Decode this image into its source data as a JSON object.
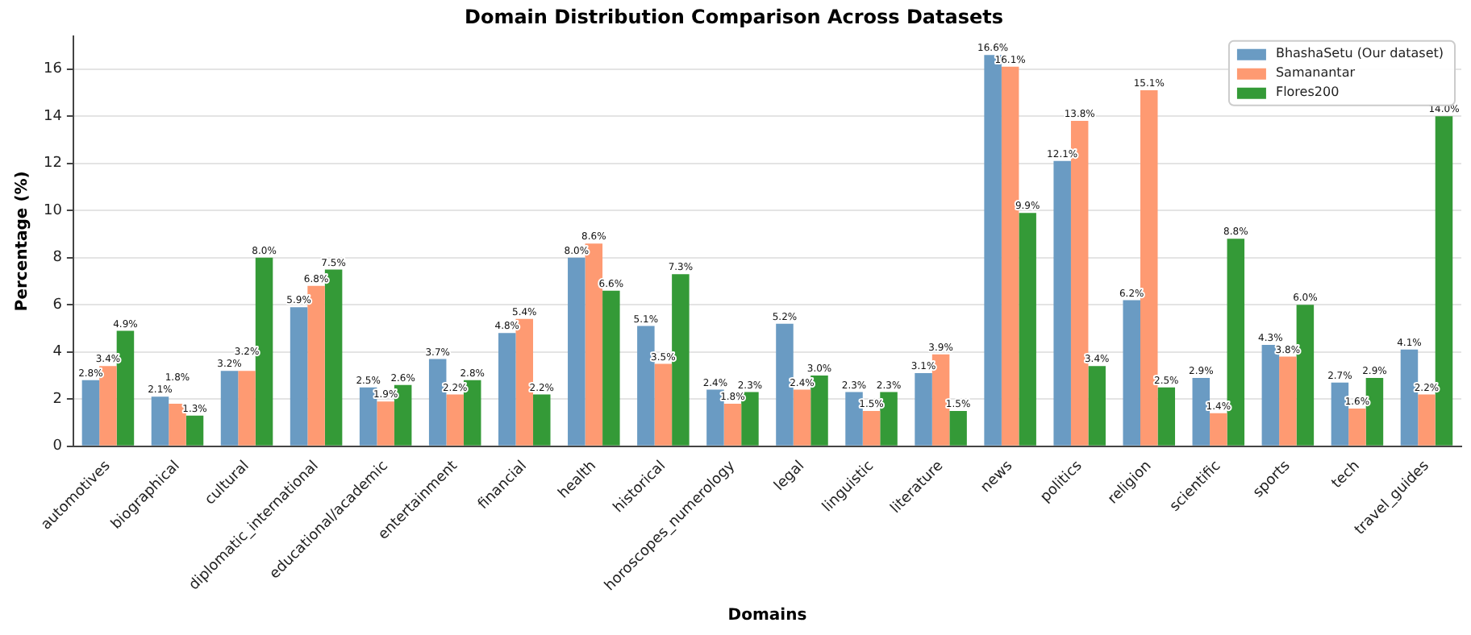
{
  "chart_data": {
    "type": "bar",
    "title": "Domain Distribution Comparison Across Datasets",
    "xlabel": "Domains",
    "ylabel": "Percentage (%)",
    "categories": [
      "automotives",
      "biographical",
      "cultural",
      "diplomatic_international",
      "educational/academic",
      "entertainment",
      "financial",
      "health",
      "historical",
      "horoscopes_numerology",
      "legal",
      "linguistic",
      "literature",
      "news",
      "politics",
      "religion",
      "scientific",
      "sports",
      "tech",
      "travel_guides"
    ],
    "series": [
      {
        "name": "BhashaSetu (Our dataset)",
        "color": "#6a9bc3",
        "values": [
          2.8,
          2.1,
          3.2,
          5.9,
          2.5,
          3.7,
          4.8,
          8.0,
          5.1,
          2.4,
          5.2,
          2.3,
          3.1,
          16.6,
          12.1,
          6.2,
          2.9,
          4.3,
          2.7,
          4.1
        ],
        "value_labels": [
          "2.8%",
          "2.1%",
          "3.2%",
          "5.9%",
          "2.5%",
          "3.7%",
          "4.8%",
          "8.0%",
          "5.1%",
          "2.4%",
          "5.2%",
          "2.3%",
          "3.1%",
          "16.6%",
          "12.1%",
          "6.2%",
          "2.9%",
          "4.3%",
          "2.7%",
          "4.1%"
        ]
      },
      {
        "name": "Samanantar",
        "color": "#fe9a72",
        "values": [
          3.4,
          1.8,
          3.2,
          6.8,
          1.9,
          2.2,
          5.4,
          8.6,
          3.5,
          1.8,
          2.4,
          1.5,
          3.9,
          16.1,
          13.8,
          15.1,
          1.4,
          3.8,
          1.6,
          2.2
        ],
        "value_labels": [
          "3.4%",
          "1.8%",
          "3.2%",
          "6.8%",
          "1.9%",
          "2.2%",
          "5.4%",
          "8.6%",
          "3.5%",
          "1.8%",
          "2.4%",
          "1.5%",
          "3.9%",
          "16.1%",
          "13.8%",
          "15.1%",
          "1.4%",
          "3.8%",
          "1.6%",
          "2.2%"
        ]
      },
      {
        "name": "Flores200",
        "color": "#349a37",
        "values": [
          4.9,
          1.3,
          8.0,
          7.5,
          2.6,
          2.8,
          2.2,
          6.6,
          7.3,
          2.3,
          3.0,
          2.3,
          1.5,
          9.9,
          3.4,
          2.5,
          8.8,
          6.0,
          2.9,
          14.0
        ],
        "value_labels": [
          "4.9%",
          "1.3%",
          "8.0%",
          "7.5%",
          "2.6%",
          "2.8%",
          "2.2%",
          "6.6%",
          "7.3%",
          "2.3%",
          "3.0%",
          "2.3%",
          "1.5%",
          "9.9%",
          "3.4%",
          "2.5%",
          "8.8%",
          "6.0%",
          "2.9%",
          "14.0%"
        ]
      }
    ],
    "ylim": [
      0,
      17.4
    ],
    "yticks": [
      0,
      2,
      4,
      6,
      8,
      10,
      12,
      14,
      16
    ],
    "grid": "y",
    "legend": "top right"
  }
}
